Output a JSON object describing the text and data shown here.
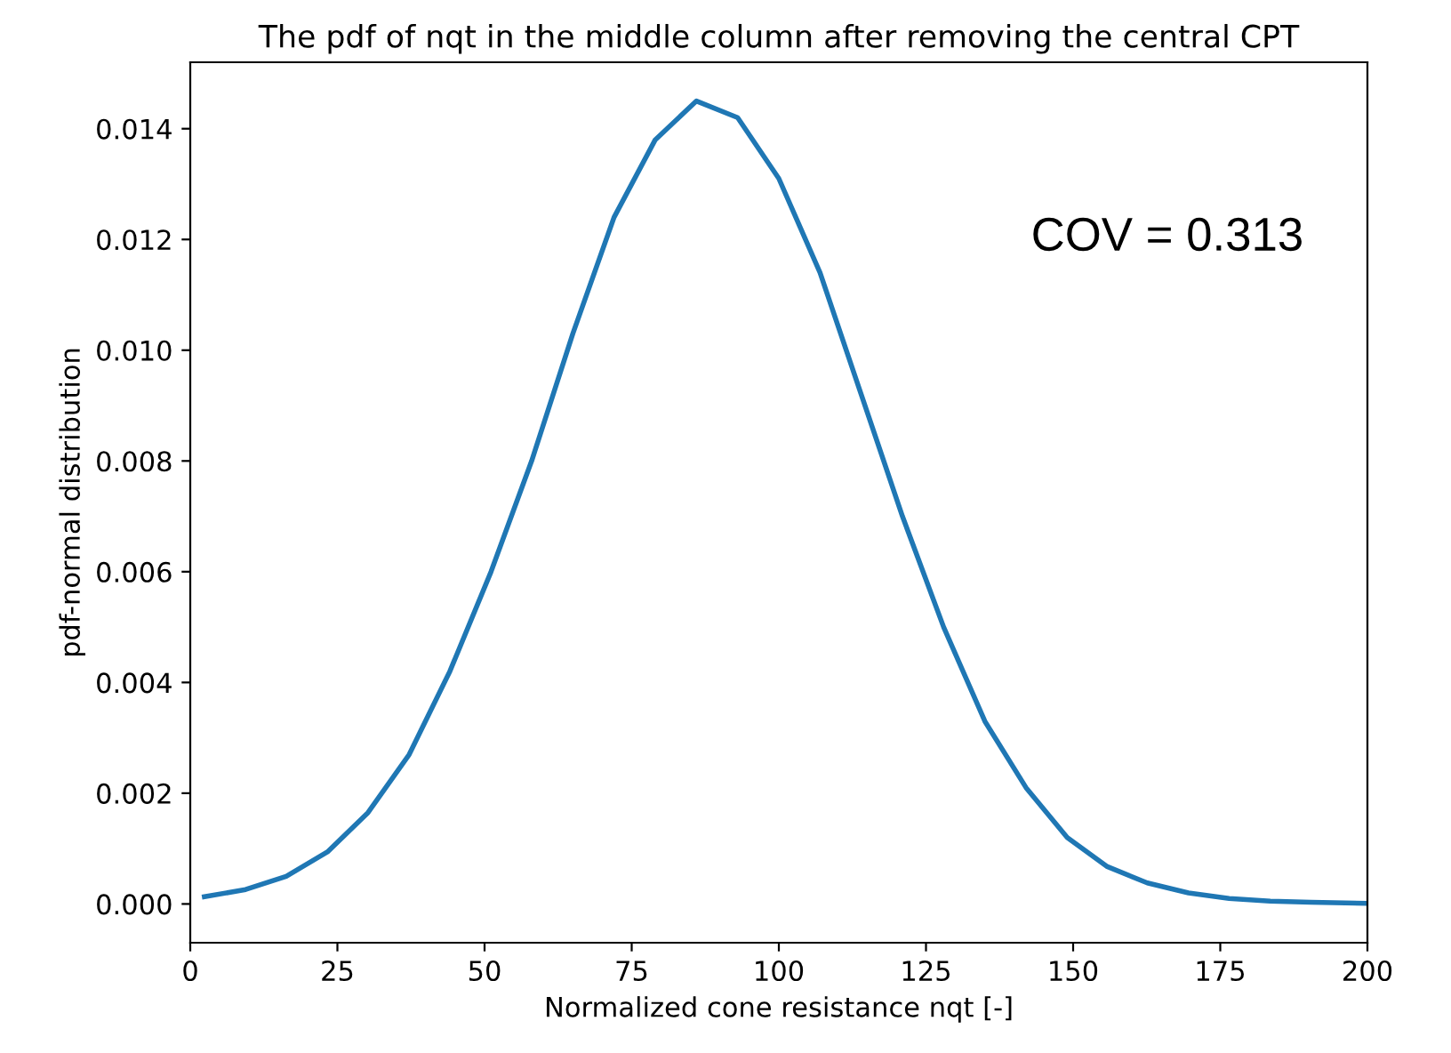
{
  "chart_data": {
    "type": "line",
    "title": "The pdf of nqt in the middle column after removing the central CPT",
    "xlabel": "Normalized cone resistance nqt [-]",
    "ylabel": "pdf-normal distribution",
    "annotations": [
      "COV = 0.313"
    ],
    "x": [
      2.4,
      9.4,
      16.3,
      23.3,
      30.2,
      37.2,
      44.1,
      51.1,
      58,
      65,
      72,
      79,
      86,
      93,
      100,
      107,
      114,
      121,
      128,
      135,
      142,
      149,
      155.7,
      162.6,
      169.6,
      176.5,
      183.5,
      190.4,
      200
    ],
    "series": [
      {
        "color": "#1f77b4",
        "values": [
          0.00013,
          0.00026,
          0.0005,
          0.00094,
          0.00165,
          0.0027,
          0.0042,
          0.006,
          0.008,
          0.0103,
          0.0124,
          0.0138,
          0.0145,
          0.0142,
          0.0131,
          0.0114,
          0.0092,
          0.007,
          0.005,
          0.0033,
          0.0021,
          0.0012,
          0.00068,
          0.00038,
          0.0002,
          0.0001,
          5e-05,
          3e-05,
          1e-05
        ]
      }
    ],
    "xlim": [
      0,
      200
    ],
    "ylim": [
      -0.0007,
      0.0152
    ],
    "xticks": [
      0,
      25,
      50,
      75,
      100,
      125,
      150,
      175,
      200
    ],
    "yticks": [
      {
        "value": 0,
        "label": "0.000"
      },
      {
        "value": 0.002,
        "label": "0.002"
      },
      {
        "value": 0.004,
        "label": "0.004"
      },
      {
        "value": 0.006,
        "label": "0.006"
      },
      {
        "value": 0.008,
        "label": "0.008"
      },
      {
        "value": 0.01,
        "label": "0.010"
      },
      {
        "value": 0.012,
        "label": "0.012"
      },
      {
        "value": 0.014,
        "label": "0.014"
      }
    ],
    "grid": false
  }
}
